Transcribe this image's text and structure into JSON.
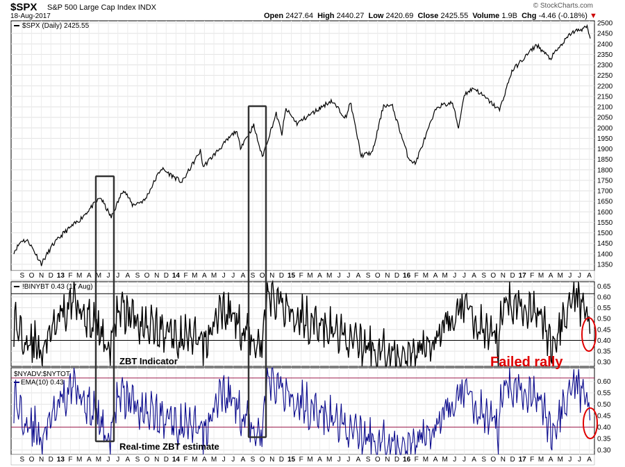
{
  "header": {
    "symbol": "$SPX",
    "name": "S&P 500 Large Cap Index",
    "exchange": "INDX",
    "date": "18-Aug-2017",
    "open_label": "Open",
    "open": "2427.64",
    "high_label": "High",
    "high": "2440.27",
    "low_label": "Low",
    "low": "2420.69",
    "close_label": "Close",
    "close": "2425.55",
    "volume_label": "Volume",
    "volume": "1.9B",
    "chg_label": "Chg",
    "chg": "-4.46 (-0.18%)",
    "brand": "© StockCharts.com"
  },
  "colors": {
    "price": "#000000",
    "zbt": "#000000",
    "estimate": "#0a0a8c",
    "annotation": "#e00000",
    "threshold_line": "#9b1b4a"
  },
  "chart_data": [
    {
      "type": "line",
      "legend": "$SPX (Daily) 2425.55",
      "ylim": [
        1320,
        2510
      ],
      "yticks": [
        1350,
        1400,
        1450,
        1500,
        1550,
        1600,
        1650,
        1700,
        1750,
        1800,
        1850,
        1900,
        1950,
        2000,
        2050,
        2100,
        2150,
        2200,
        2250,
        2300,
        2350,
        2400,
        2450,
        2500
      ],
      "x_labels": [
        "S",
        "O",
        "N",
        "D",
        "13",
        "F",
        "M",
        "A",
        "M",
        "J",
        "J",
        "A",
        "S",
        "O",
        "N",
        "D",
        "14",
        "F",
        "M",
        "A",
        "M",
        "J",
        "J",
        "A",
        "S",
        "O",
        "N",
        "D",
        "15",
        "F",
        "M",
        "A",
        "M",
        "J",
        "J",
        "A",
        "S",
        "O",
        "N",
        "D",
        "16",
        "F",
        "M",
        "A",
        "M",
        "J",
        "J",
        "A",
        "S",
        "O",
        "N",
        "D",
        "17",
        "F",
        "M",
        "A",
        "M",
        "J",
        "J",
        "A"
      ],
      "series": [
        {
          "x": [
            "2012-08-20",
            "2012-09-14",
            "2012-10-05",
            "2012-11-15",
            "2012-12-20",
            "2013-01-25",
            "2013-03-15",
            "2013-05-21",
            "2013-06-24",
            "2013-08-02",
            "2013-08-30",
            "2013-10-08",
            "2013-11-29",
            "2014-02-03",
            "2014-04-02",
            "2014-04-11",
            "2014-07-24",
            "2014-08-07",
            "2014-09-18",
            "2014-10-15",
            "2014-11-28",
            "2014-12-16",
            "2014-12-29",
            "2015-02-02",
            "2015-05-21",
            "2015-07-08",
            "2015-07-20",
            "2015-08-24",
            "2015-09-29",
            "2015-11-03",
            "2015-12-01",
            "2016-01-20",
            "2016-02-11",
            "2016-04-20",
            "2016-06-08",
            "2016-06-27",
            "2016-07-15",
            "2016-08-15",
            "2016-11-04",
            "2016-12-13",
            "2017-03-01",
            "2017-04-13",
            "2017-06-19",
            "2017-08-08",
            "2017-08-18"
          ],
          "y": [
            1410,
            1465,
            1460,
            1353,
            1440,
            1500,
            1560,
            1669,
            1573,
            1709,
            1633,
            1655,
            1807,
            1741,
            1890,
            1815,
            1987,
            1909,
            2011,
            1862,
            2067,
            1972,
            2090,
            2021,
            2130,
            2046,
            2128,
            1867,
            1884,
            2109,
            2102,
            1859,
            1829,
            2102,
            2119,
            2000,
            2160,
            2190,
            2085,
            2271,
            2396,
            2329,
            2453,
            2480,
            2425.55
          ]
        }
      ]
    },
    {
      "type": "line",
      "legend": "!BINYBT 0.43 (17 Aug)",
      "ylim": [
        0.28,
        0.67
      ],
      "yticks": [
        0.3,
        0.35,
        0.4,
        0.45,
        0.5,
        0.55,
        0.6,
        0.65
      ],
      "reference_lines": [
        0.4,
        0.615
      ],
      "annotation": "ZBT Indicator",
      "series": [
        {
          "x": [
            "2012-08-20",
            "2012-11-12",
            "2013-03-01",
            "2013-06-21",
            "2013-07-15",
            "2013-12-02",
            "2014-04-14",
            "2014-06-10",
            "2014-10-14",
            "2014-10-28",
            "2015-03-02",
            "2015-08-24",
            "2016-01-20",
            "2016-02-11",
            "2016-07-11",
            "2016-10-31",
            "2016-11-10",
            "2017-03-01",
            "2017-04-13",
            "2017-07-03",
            "2017-08-10",
            "2017-08-17"
          ],
          "y": [
            0.48,
            0.35,
            0.6,
            0.36,
            0.55,
            0.44,
            0.38,
            0.55,
            0.38,
            0.62,
            0.5,
            0.38,
            0.3,
            0.35,
            0.55,
            0.37,
            0.57,
            0.56,
            0.38,
            0.58,
            0.52,
            0.43
          ]
        }
      ]
    },
    {
      "type": "line",
      "legend_symbol": "$NYADV:$NYTOT",
      "legend": "EMA(10) 0.43",
      "ylim": [
        0.28,
        0.66
      ],
      "yticks": [
        0.3,
        0.35,
        0.4,
        0.45,
        0.5,
        0.55,
        0.6
      ],
      "reference_lines": [
        0.4,
        0.615
      ],
      "annotation": "Real-time ZBT estimate",
      "series": [
        {
          "x": [
            "2012-08-20",
            "2012-11-12",
            "2013-03-01",
            "2013-06-21",
            "2013-07-15",
            "2013-12-02",
            "2014-04-14",
            "2014-06-10",
            "2014-10-14",
            "2014-10-28",
            "2015-03-02",
            "2015-08-24",
            "2016-01-20",
            "2016-02-11",
            "2016-07-11",
            "2016-10-31",
            "2016-11-10",
            "2017-03-01",
            "2017-04-13",
            "2017-07-03",
            "2017-08-10",
            "2017-08-17"
          ],
          "y": [
            0.52,
            0.35,
            0.6,
            0.34,
            0.55,
            0.44,
            0.37,
            0.56,
            0.37,
            0.62,
            0.5,
            0.36,
            0.29,
            0.34,
            0.55,
            0.38,
            0.58,
            0.56,
            0.38,
            0.57,
            0.52,
            0.43
          ]
        }
      ]
    }
  ],
  "annotations": {
    "failed_rally": "Failed rally"
  }
}
